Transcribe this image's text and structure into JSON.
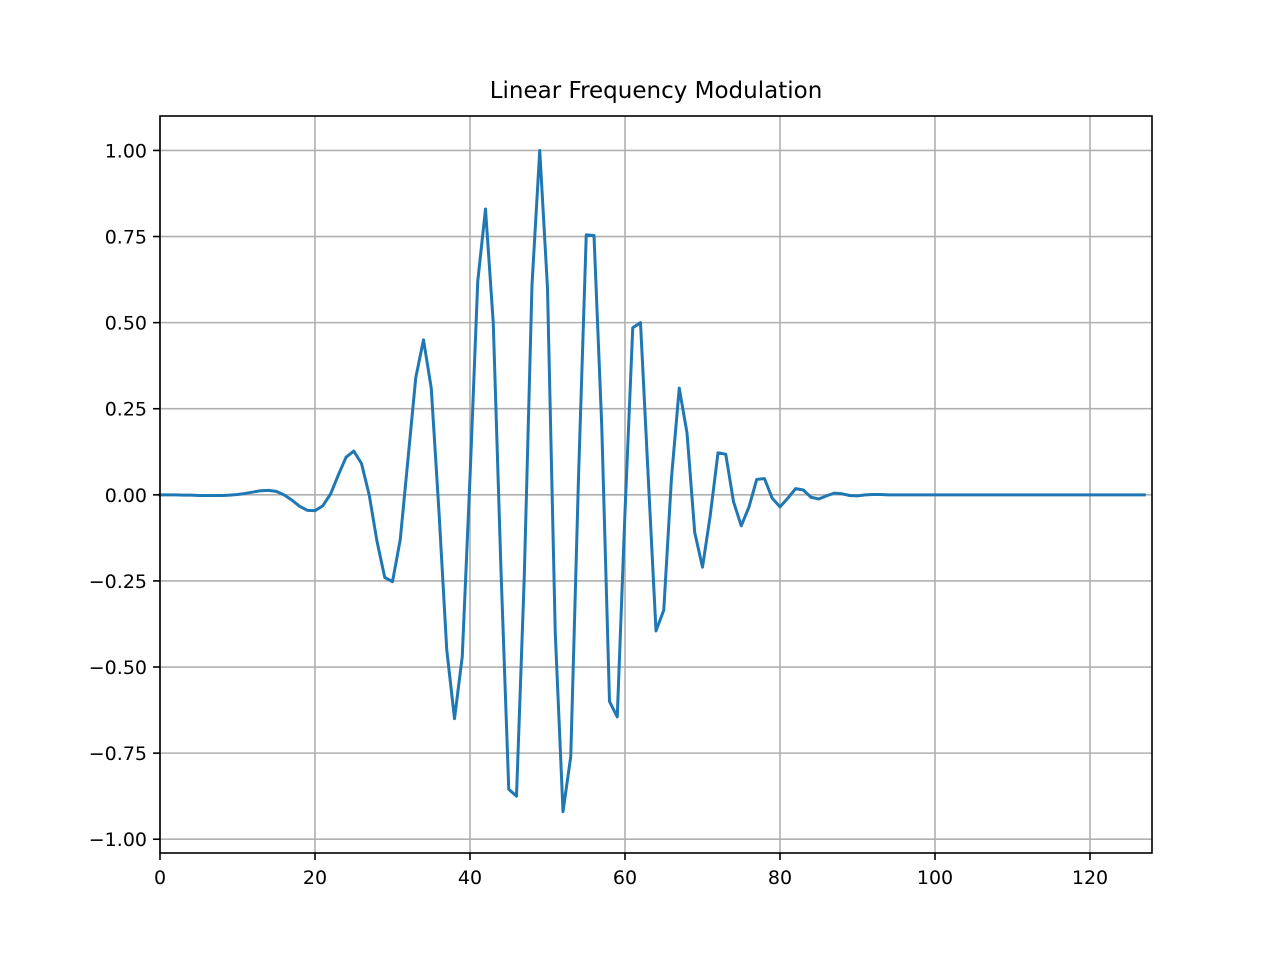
{
  "chart_data": {
    "type": "line",
    "title": "Linear Frequency Modulation",
    "xlabel": "",
    "ylabel": "",
    "xlim": [
      0,
      128
    ],
    "ylim": [
      -1.04,
      1.1
    ],
    "grid": true,
    "xticks": [
      0,
      20,
      40,
      60,
      80,
      100,
      120
    ],
    "xtick_labels": [
      "0",
      "20",
      "40",
      "60",
      "80",
      "100",
      "120"
    ],
    "yticks": [
      1.0,
      0.75,
      0.5,
      0.25,
      0.0,
      -0.25,
      -0.5,
      -0.75,
      -1.0
    ],
    "ytick_labels": [
      "1.00",
      "0.75",
      "0.50",
      "0.25",
      "0.00",
      "−0.25",
      "−0.50",
      "−0.75",
      "−1.00"
    ],
    "series": [
      {
        "color": "#1f77b4",
        "x": [
          0,
          1,
          2,
          3,
          4,
          5,
          6,
          7,
          8,
          9,
          10,
          11,
          12,
          13,
          14,
          15,
          16,
          17,
          18,
          19,
          20,
          21,
          22,
          23,
          24,
          25,
          26,
          27,
          28,
          29,
          30,
          31,
          32,
          33,
          34,
          35,
          36,
          37,
          38,
          39,
          40,
          41,
          42,
          43,
          44,
          45,
          46,
          47,
          48,
          49,
          50,
          51,
          52,
          53,
          54,
          55,
          56,
          57,
          58,
          59,
          60,
          61,
          62,
          63,
          64,
          65,
          66,
          67,
          68,
          69,
          70,
          71,
          72,
          73,
          74,
          75,
          76,
          77,
          78,
          79,
          80,
          81,
          82,
          83,
          84,
          85,
          86,
          87,
          88,
          89,
          90,
          91,
          92,
          93,
          94,
          95,
          96,
          97,
          98,
          99,
          100,
          101,
          102,
          103,
          104,
          105,
          106,
          107,
          108,
          109,
          110,
          111,
          112,
          113,
          114,
          115,
          116,
          117,
          118,
          119,
          120,
          121,
          122,
          123,
          124,
          125,
          126,
          127
        ],
        "y": [
          0.0,
          0.0,
          0.0,
          -0.001,
          -0.001,
          -0.002,
          -0.002,
          -0.002,
          -0.002,
          -0.001,
          0.001,
          0.004,
          0.008,
          0.012,
          0.013,
          0.01,
          0.0,
          -0.015,
          -0.033,
          -0.045,
          -0.046,
          -0.032,
          0.002,
          0.057,
          0.109,
          0.127,
          0.091,
          -0.001,
          -0.135,
          -0.24,
          -0.252,
          -0.13,
          0.104,
          0.34,
          0.45,
          0.31,
          -0.05,
          -0.45,
          -0.65,
          -0.47,
          0.05,
          0.62,
          0.83,
          0.5,
          -0.22,
          -0.855,
          -0.875,
          -0.24,
          0.61,
          1.0,
          0.6,
          -0.4,
          -0.92,
          -0.76,
          0.05,
          0.755,
          0.753,
          0.2,
          -0.6,
          -0.645,
          -0.05,
          0.485,
          0.5,
          0.05,
          -0.395,
          -0.335,
          0.05,
          0.31,
          0.18,
          -0.11,
          -0.21,
          -0.06,
          0.122,
          0.118,
          -0.02,
          -0.09,
          -0.035,
          0.045,
          0.047,
          -0.01,
          -0.035,
          -0.01,
          0.018,
          0.014,
          -0.007,
          -0.012,
          -0.003,
          0.005,
          0.003,
          -0.002,
          -0.003,
          0.0,
          0.001,
          0.001,
          0.0,
          0.0,
          0.0,
          0.0,
          0.0,
          0.0,
          0.0,
          0.0,
          0.0,
          0.0,
          0.0,
          0.0,
          0.0,
          0.0,
          0.0,
          0.0,
          0.0,
          0.0,
          0.0,
          0.0,
          0.0,
          0.0,
          0.0,
          0.0,
          0.0,
          0.0,
          0.0,
          0.0,
          0.0,
          0.0,
          0.0,
          0.0,
          0.0,
          0.0
        ]
      }
    ]
  }
}
